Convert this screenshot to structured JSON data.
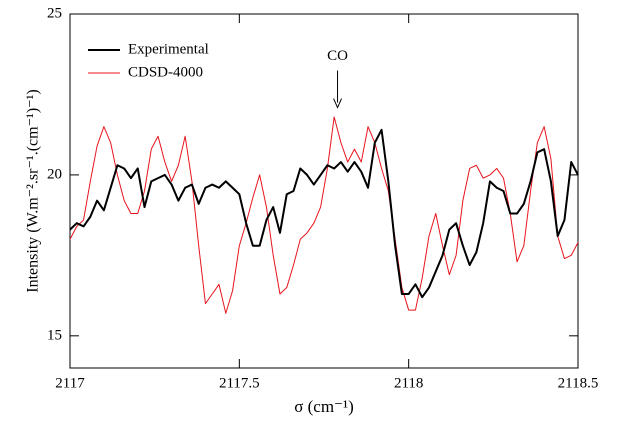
{
  "chart_data": {
    "type": "line",
    "xlabel": "σ (cm⁻¹)",
    "ylabel": "Intensity (W.m⁻².sr⁻¹.(cm⁻¹)⁻¹)",
    "xlim": [
      2117,
      2118.5
    ],
    "xticks": [
      2117,
      2117.5,
      2118,
      2118.5
    ],
    "ylim": [
      14,
      25
    ],
    "yticks": [
      15,
      20,
      25
    ],
    "legend": "upper left",
    "annotations": [
      {
        "text": "CO",
        "x": 2117.79,
        "y": 22.0
      }
    ],
    "x": [
      2117.0,
      2117.02,
      2117.04,
      2117.06,
      2117.08,
      2117.1,
      2117.12,
      2117.14,
      2117.16,
      2117.18,
      2117.2,
      2117.22,
      2117.24,
      2117.26,
      2117.28,
      2117.3,
      2117.32,
      2117.34,
      2117.36,
      2117.38,
      2117.4,
      2117.42,
      2117.44,
      2117.46,
      2117.48,
      2117.5,
      2117.52,
      2117.54,
      2117.56,
      2117.58,
      2117.6,
      2117.62,
      2117.64,
      2117.66,
      2117.68,
      2117.7,
      2117.72,
      2117.74,
      2117.76,
      2117.78,
      2117.8,
      2117.82,
      2117.84,
      2117.86,
      2117.88,
      2117.9,
      2117.92,
      2117.94,
      2117.96,
      2117.98,
      2118.0,
      2118.02,
      2118.04,
      2118.06,
      2118.08,
      2118.1,
      2118.12,
      2118.14,
      2118.16,
      2118.18,
      2118.2,
      2118.22,
      2118.24,
      2118.26,
      2118.28,
      2118.3,
      2118.32,
      2118.34,
      2118.36,
      2118.38,
      2118.4,
      2118.42,
      2118.44,
      2118.46,
      2118.48,
      2118.5
    ],
    "series": [
      {
        "name": "Experimental",
        "color": "#000000",
        "width": 2,
        "values": [
          18.3,
          18.5,
          18.4,
          18.7,
          19.2,
          18.9,
          19.6,
          20.3,
          20.2,
          19.9,
          20.2,
          19.0,
          19.8,
          19.9,
          20.0,
          19.7,
          19.2,
          19.6,
          19.7,
          19.1,
          19.6,
          19.7,
          19.6,
          19.8,
          19.6,
          19.4,
          18.5,
          17.8,
          17.8,
          18.6,
          19.0,
          18.2,
          19.4,
          19.5,
          20.2,
          20.0,
          19.7,
          20.0,
          20.3,
          20.2,
          20.4,
          20.1,
          20.4,
          20.1,
          19.6,
          21.0,
          21.4,
          19.8,
          17.8,
          16.3,
          16.3,
          16.6,
          16.2,
          16.5,
          17.0,
          17.5,
          18.3,
          18.5,
          17.8,
          17.2,
          17.6,
          18.5,
          19.8,
          19.6,
          19.5,
          18.8,
          18.8,
          19.1,
          19.8,
          20.7,
          20.8,
          19.8,
          18.1,
          18.6,
          20.4,
          20.0
        ]
      },
      {
        "name": "CDSD-4000",
        "color": "#e8141c",
        "width": 1,
        "values": [
          18.0,
          18.4,
          18.6,
          19.8,
          20.9,
          21.5,
          21.0,
          20.0,
          19.2,
          18.8,
          18.8,
          19.5,
          20.8,
          21.2,
          20.4,
          19.8,
          20.3,
          21.2,
          19.8,
          17.8,
          16.0,
          16.3,
          16.6,
          15.7,
          16.4,
          17.8,
          18.5,
          19.3,
          20.0,
          19.0,
          17.5,
          16.3,
          16.5,
          17.2,
          18.0,
          18.2,
          18.5,
          19.0,
          20.2,
          21.8,
          21.0,
          20.4,
          20.8,
          20.4,
          21.5,
          21.0,
          20.2,
          19.5,
          18.0,
          16.5,
          15.8,
          15.8,
          16.8,
          18.1,
          18.8,
          17.8,
          16.9,
          17.5,
          19.2,
          20.2,
          20.3,
          19.9,
          20.0,
          20.2,
          19.9,
          18.8,
          17.3,
          17.8,
          19.5,
          21.0,
          21.5,
          20.5,
          18.1,
          17.4,
          17.5,
          17.9
        ]
      }
    ]
  }
}
